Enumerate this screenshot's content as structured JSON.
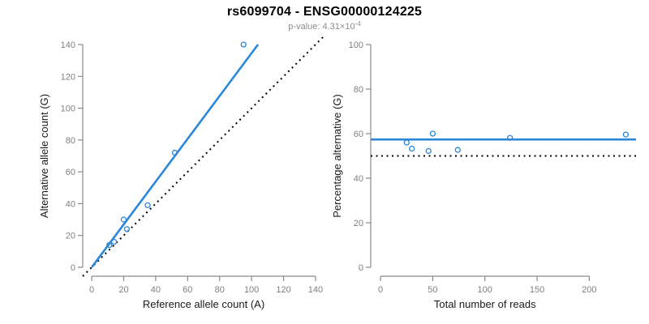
{
  "figure": {
    "title": "rs6099704 - ENSG00000124225",
    "subtitle_base": "p-value: 4.31×10",
    "subtitle_exponent": "-4"
  },
  "style": {
    "accent_blue": "#2b87d9",
    "identity_black": "#000000",
    "axis_color": "#898989",
    "tick_label_color": "#808080",
    "label_color": "#1a1a1a",
    "subtitle_color": "#8c8c8c",
    "background": "#ffffff"
  },
  "chart_data": [
    {
      "id": "allele-counts",
      "type": "scatter",
      "xlabel": "Reference allele count (A)",
      "ylabel": "Alternative allele count (G)",
      "xlim": [
        -5.6,
        145.6
      ],
      "ylim": [
        -5.6,
        145.6
      ],
      "xticks": [
        0,
        20,
        40,
        60,
        80,
        100,
        120,
        140
      ],
      "yticks": [
        0,
        20,
        40,
        60,
        80,
        100,
        120,
        140
      ],
      "grid": false,
      "legend": "none",
      "points": [
        [
          11,
          14
        ],
        [
          14,
          16
        ],
        [
          22,
          24
        ],
        [
          20,
          30
        ],
        [
          35,
          39
        ],
        [
          52,
          72
        ],
        [
          95,
          140
        ]
      ],
      "lines": [
        {
          "name": "identity-line",
          "x1": -5.6,
          "y1": -5.6,
          "x2": 145.6,
          "y2": 145.6,
          "style": "dotted",
          "color": "#000000",
          "width": 2
        },
        {
          "name": "fit-line",
          "x1": 0,
          "y1": 0,
          "x2": 104,
          "y2": 140,
          "style": "solid",
          "color": "#2b87d9",
          "width": 2.6
        }
      ]
    },
    {
      "id": "percentage-vs-reads",
      "type": "scatter",
      "xlabel": "Total number of reads",
      "ylabel": "Percentage alternative (G)",
      "xlim": [
        -9.4,
        244.8
      ],
      "ylim": [
        -4,
        104
      ],
      "xticks": [
        0,
        50,
        100,
        150,
        200
      ],
      "yticks": [
        0,
        20,
        40,
        60,
        80,
        100
      ],
      "grid": false,
      "legend": "none",
      "points": [
        [
          25,
          56
        ],
        [
          30,
          53.3
        ],
        [
          46,
          52.2
        ],
        [
          50,
          60
        ],
        [
          74,
          52.7
        ],
        [
          124,
          58.1
        ],
        [
          235,
          59.6
        ]
      ],
      "lines": [
        {
          "name": "expected-50-line",
          "x1": -9.4,
          "y1": 50,
          "x2": 244.8,
          "y2": 50,
          "style": "dotted",
          "color": "#000000",
          "width": 2
        },
        {
          "name": "mean-percentage-line",
          "x1": -9.4,
          "y1": 57.4,
          "x2": 244.8,
          "y2": 57.4,
          "style": "solid",
          "color": "#2b87d9",
          "width": 2.6
        }
      ]
    }
  ]
}
